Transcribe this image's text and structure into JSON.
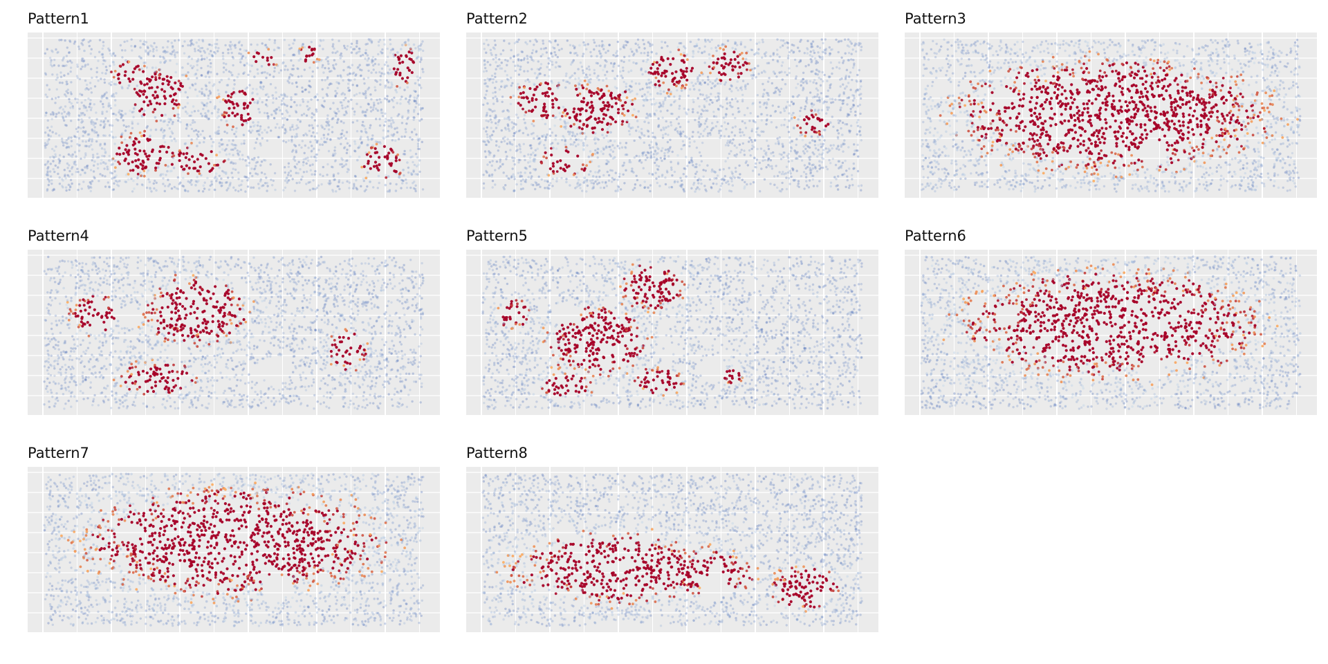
{
  "figure": {
    "background": "#ffffff",
    "panel_background": "#ebebeb",
    "grid_color": "#ffffff"
  },
  "chart_data": [
    {
      "type": "scatter",
      "title": "Pattern1",
      "xlabel": "",
      "ylabel": "",
      "grid": true,
      "legend": "none",
      "color_scale": {
        "low": "#4f6fb8",
        "mid": "#c6d9ea",
        "high": "#a50026"
      },
      "hotspots": [
        {
          "x": 0.3,
          "y": 0.35,
          "w": 0.09,
          "h": 0.2
        },
        {
          "x": 0.26,
          "y": 0.75,
          "w": 0.1,
          "h": 0.16
        },
        {
          "x": 0.4,
          "y": 0.8,
          "w": 0.09,
          "h": 0.12
        },
        {
          "x": 0.51,
          "y": 0.45,
          "w": 0.06,
          "h": 0.15
        },
        {
          "x": 0.89,
          "y": 0.8,
          "w": 0.07,
          "h": 0.13
        },
        {
          "x": 0.95,
          "y": 0.18,
          "w": 0.04,
          "h": 0.17
        },
        {
          "x": 0.58,
          "y": 0.12,
          "w": 0.05,
          "h": 0.07
        },
        {
          "x": 0.7,
          "y": 0.1,
          "w": 0.03,
          "h": 0.07
        },
        {
          "x": 0.22,
          "y": 0.22,
          "w": 0.05,
          "h": 0.11
        }
      ]
    },
    {
      "type": "scatter",
      "title": "Pattern2",
      "xlabel": "",
      "ylabel": "",
      "grid": true,
      "legend": "none",
      "color_scale": {
        "low": "#4f6fb8",
        "mid": "#c6d9ea",
        "high": "#a50026"
      },
      "hotspots": [
        {
          "x": 0.5,
          "y": 0.2,
          "w": 0.08,
          "h": 0.16
        },
        {
          "x": 0.3,
          "y": 0.45,
          "w": 0.12,
          "h": 0.2
        },
        {
          "x": 0.15,
          "y": 0.4,
          "w": 0.08,
          "h": 0.15
        },
        {
          "x": 0.65,
          "y": 0.17,
          "w": 0.07,
          "h": 0.13
        },
        {
          "x": 0.22,
          "y": 0.8,
          "w": 0.08,
          "h": 0.12
        },
        {
          "x": 0.87,
          "y": 0.55,
          "w": 0.05,
          "h": 0.1
        }
      ]
    },
    {
      "type": "scatter",
      "title": "Pattern3",
      "xlabel": "",
      "ylabel": "",
      "grid": true,
      "legend": "none",
      "color_scale": {
        "low": "#4f6fb8",
        "mid": "#c6d9ea",
        "high": "#a50026"
      },
      "hotspots": [
        {
          "x": 0.5,
          "y": 0.5,
          "w": 0.48,
          "h": 0.42
        }
      ]
    },
    {
      "type": "scatter",
      "title": "Pattern4",
      "xlabel": "",
      "ylabel": "",
      "grid": true,
      "legend": "none",
      "color_scale": {
        "low": "#4f6fb8",
        "mid": "#c6d9ea",
        "high": "#a50026"
      },
      "hotspots": [
        {
          "x": 0.13,
          "y": 0.38,
          "w": 0.08,
          "h": 0.15
        },
        {
          "x": 0.8,
          "y": 0.62,
          "w": 0.06,
          "h": 0.15
        },
        {
          "x": 0.4,
          "y": 0.35,
          "w": 0.16,
          "h": 0.26
        },
        {
          "x": 0.3,
          "y": 0.8,
          "w": 0.12,
          "h": 0.13
        }
      ]
    },
    {
      "type": "scatter",
      "title": "Pattern5",
      "xlabel": "",
      "ylabel": "",
      "grid": true,
      "legend": "none",
      "color_scale": {
        "low": "#4f6fb8",
        "mid": "#c6d9ea",
        "high": "#a50026"
      },
      "hotspots": [
        {
          "x": 0.08,
          "y": 0.38,
          "w": 0.05,
          "h": 0.11
        },
        {
          "x": 0.3,
          "y": 0.55,
          "w": 0.15,
          "h": 0.28
        },
        {
          "x": 0.45,
          "y": 0.2,
          "w": 0.1,
          "h": 0.18
        },
        {
          "x": 0.22,
          "y": 0.85,
          "w": 0.08,
          "h": 0.09
        },
        {
          "x": 0.46,
          "y": 0.82,
          "w": 0.08,
          "h": 0.1
        },
        {
          "x": 0.66,
          "y": 0.78,
          "w": 0.03,
          "h": 0.07
        }
      ]
    },
    {
      "type": "scatter",
      "title": "Pattern6",
      "xlabel": "",
      "ylabel": "",
      "grid": true,
      "legend": "none",
      "color_scale": {
        "low": "#4f6fb8",
        "mid": "#c6d9ea",
        "high": "#a50026"
      },
      "hotspots": [
        {
          "x": 0.5,
          "y": 0.45,
          "w": 0.45,
          "h": 0.4
        }
      ]
    },
    {
      "type": "scatter",
      "title": "Pattern7",
      "xlabel": "",
      "ylabel": "",
      "grid": true,
      "legend": "none",
      "color_scale": {
        "low": "#4f6fb8",
        "mid": "#c6d9ea",
        "high": "#a50026"
      },
      "hotspots": [
        {
          "x": 0.5,
          "y": 0.45,
          "w": 0.45,
          "h": 0.4
        }
      ]
    },
    {
      "type": "scatter",
      "title": "Pattern8",
      "xlabel": "",
      "ylabel": "",
      "grid": true,
      "legend": "none",
      "color_scale": {
        "low": "#4f6fb8",
        "mid": "#c6d9ea",
        "high": "#a50026"
      },
      "hotspots": [
        {
          "x": 0.35,
          "y": 0.62,
          "w": 0.32,
          "h": 0.26
        },
        {
          "x": 0.85,
          "y": 0.75,
          "w": 0.1,
          "h": 0.17
        },
        {
          "x": 0.6,
          "y": 0.65,
          "w": 0.14,
          "h": 0.16
        }
      ]
    }
  ]
}
